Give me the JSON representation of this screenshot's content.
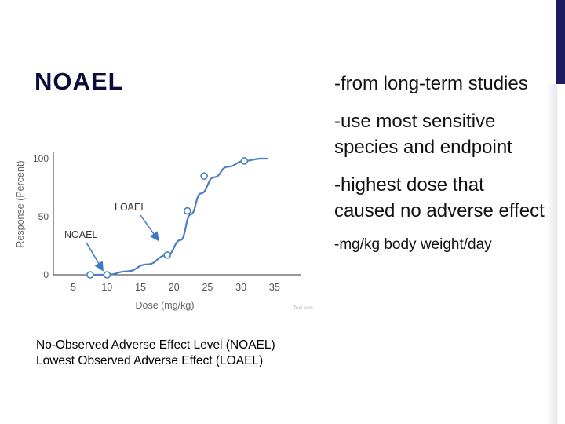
{
  "slide": {
    "title": "NOAEL",
    "accent_color": "#1c1c5e",
    "bullets": [
      "-from long-term studies",
      "-use most sensitive species and endpoint",
      "-highest dose that caused no adverse effect"
    ],
    "small_bullet": "-mg/kg body weight/day",
    "caption_lines": [
      "No-Observed Adverse Effect Level (NOAEL)",
      "Lowest Observed Adverse Effect (LOAEL)"
    ]
  },
  "chart_data": {
    "type": "line",
    "title": "",
    "xlabel": "Dose (mg/kg)",
    "ylabel": "Response (Percent)",
    "x_ticks": [
      "5",
      "10",
      "15",
      "20",
      "25",
      "30",
      "35"
    ],
    "y_ticks": [
      "0",
      "50",
      "100"
    ],
    "xlim": [
      2,
      39
    ],
    "ylim": [
      0,
      100
    ],
    "series": [
      {
        "points": [
          [
            7.5,
            0
          ],
          [
            10,
            0
          ],
          [
            13,
            3
          ],
          [
            16,
            9
          ],
          [
            19,
            17
          ],
          [
            21,
            30
          ],
          [
            22.5,
            52
          ],
          [
            24,
            70
          ],
          [
            26,
            84
          ],
          [
            28,
            93
          ],
          [
            30.5,
            98
          ],
          [
            33,
            100
          ],
          [
            34,
            100
          ]
        ],
        "markers": [
          [
            7.5,
            0
          ],
          [
            10,
            0
          ],
          [
            19,
            17
          ],
          [
            22,
            55
          ],
          [
            24.5,
            85
          ],
          [
            30.5,
            98
          ]
        ]
      }
    ],
    "annotations": [
      {
        "label": "NOAEL",
        "points_to": [
          10,
          0
        ]
      },
      {
        "label": "LOAEL",
        "points_to": [
          19,
          17
        ]
      }
    ],
    "line_color": "#4a7fc1",
    "annotation_arrow_color": "#3f78c4",
    "watermark": "ToxLearn"
  }
}
